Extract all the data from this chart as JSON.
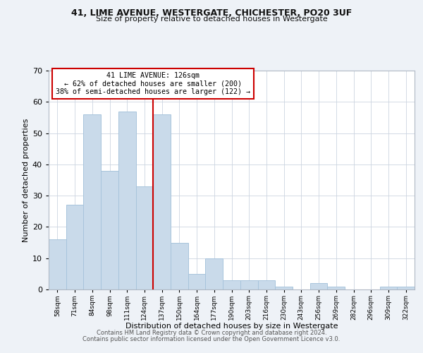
{
  "title1": "41, LIME AVENUE, WESTERGATE, CHICHESTER, PO20 3UF",
  "title2": "Size of property relative to detached houses in Westergate",
  "xlabel": "Distribution of detached houses by size in Westergate",
  "ylabel": "Number of detached properties",
  "bar_labels": [
    "58sqm",
    "71sqm",
    "84sqm",
    "98sqm",
    "111sqm",
    "124sqm",
    "137sqm",
    "150sqm",
    "164sqm",
    "177sqm",
    "190sqm",
    "203sqm",
    "216sqm",
    "230sqm",
    "243sqm",
    "256sqm",
    "269sqm",
    "282sqm",
    "296sqm",
    "309sqm",
    "322sqm"
  ],
  "bar_values": [
    16,
    27,
    56,
    38,
    57,
    33,
    56,
    15,
    5,
    10,
    3,
    3,
    3,
    1,
    0,
    2,
    1,
    0,
    0,
    1,
    1
  ],
  "bar_color": "#c9daea",
  "bar_edge_color": "#a8c4dc",
  "vline_x": 5.5,
  "vline_color": "#cc0000",
  "annotation_title": "41 LIME AVENUE: 126sqm",
  "annotation_line1": "← 62% of detached houses are smaller (200)",
  "annotation_line2": "38% of semi-detached houses are larger (122) →",
  "annotation_box_color": "#cc0000",
  "ylim": [
    0,
    70
  ],
  "yticks": [
    0,
    10,
    20,
    30,
    40,
    50,
    60,
    70
  ],
  "footer1": "Contains HM Land Registry data © Crown copyright and database right 2024.",
  "footer2": "Contains public sector information licensed under the Open Government Licence v3.0.",
  "background_color": "#eef2f7",
  "plot_bg_color": "#ffffff",
  "grid_color": "#ccd5e0"
}
